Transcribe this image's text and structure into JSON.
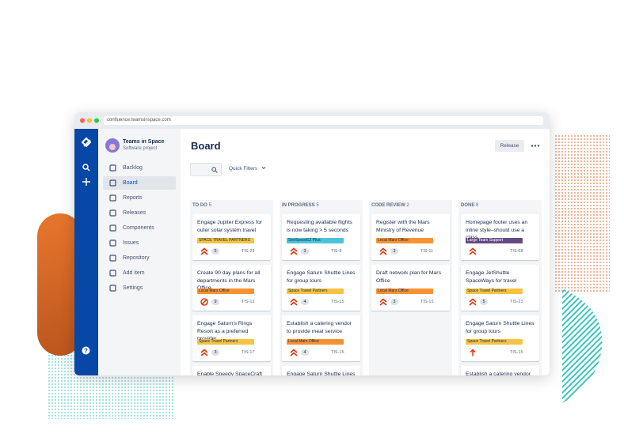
{
  "browser": {
    "url": "confluence.teamsinspace.com"
  },
  "project": {
    "name": "Teams in Space",
    "type": "Software project"
  },
  "nav": [
    "Backlog",
    "Board",
    "Reports",
    "Releases",
    "Components",
    "Issues",
    "Repository",
    "Add item",
    "Settings"
  ],
  "board": {
    "title": "Board",
    "release": "Release",
    "quick_filters": "Quick Filters",
    "columns": [
      {
        "name": "TO DO",
        "count": 5,
        "cards": [
          {
            "title": "Engage Jupiter Express for outer solar system travel",
            "label": "SPACE TRAVEL PARTNERS",
            "label_color": "#f6c342",
            "points": 5,
            "key": "TIS-25"
          },
          {
            "title": "Create 90 day plans for all departments in the Mars Office",
            "label": "Local Mars Office",
            "label_color": "#f79232",
            "points": 9,
            "key": "TIS-12"
          },
          {
            "title": "Engage Saturn's Rings Resort as a preferred provider",
            "label": "Space Travel Partners",
            "label_color": "#f6c342",
            "points": 3,
            "key": "TIS-17"
          },
          {
            "title": "Enable Speedy SpaceCraft as the preferred",
            "label_color": "#4bc3d9"
          }
        ]
      },
      {
        "name": "IN PROGRESS",
        "count": 5,
        "cards": [
          {
            "title": "Requesting avaliable flights is now taking > 5 seconds",
            "label": "SeeSpaceEZ Plus",
            "label_color": "#4bc3d9",
            "points": 3,
            "key": "TIS-8"
          },
          {
            "title": "Engage Saturn Shuttle Lines for group tours",
            "label": "Space Travel Partners",
            "label_color": "#f6c342",
            "points": 4,
            "key": "TIS-15"
          },
          {
            "title": "Establish a catering vendor to provide meal service",
            "label": "Local Mars Office",
            "label_color": "#f79232",
            "points": 4,
            "key": "TIS-15"
          },
          {
            "title": "Engage Saturn Shuttle Lines for group tours",
            "label_color": "#f6c342"
          }
        ]
      },
      {
        "name": "CODE REVIEW",
        "count": 2,
        "cards": [
          {
            "title": "Register with the Mars Ministry of Revenue",
            "label": "Local Mars Office",
            "label_color": "#f79232",
            "points": 3,
            "key": "TIS-11"
          },
          {
            "title": "Draft network plan for Mars Office",
            "label": "Local Mars Office",
            "label_color": "#f79232",
            "points": 3,
            "key": "TIS-15"
          }
        ]
      },
      {
        "name": "DONE",
        "count": 8,
        "cards": [
          {
            "title": "Homepage footer uses an inline style–should use a class",
            "label": "Large Team Support",
            "label_color": "#654982",
            "key": "TIS-68"
          },
          {
            "title": "Engage JetShuttle SpaceWays for travel",
            "label": "Space Travel Partners",
            "label_color": "#f6c342",
            "points": 5,
            "key": "TIS-23"
          },
          {
            "title": "Engage Saturn Shuttle Lines for group tours",
            "label": "Space Travel Partners",
            "label_color": "#f6c342",
            "key": "TIS-15"
          },
          {
            "title": "Establish a catering vendor to provide meal service",
            "label_color": "#f79232"
          }
        ]
      }
    ]
  }
}
